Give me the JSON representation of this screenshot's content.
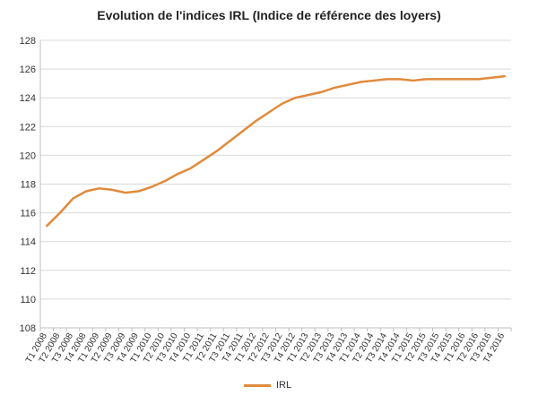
{
  "chart_data": {
    "type": "line",
    "title": "Evolution de l'indices IRL (Indice de référence des loyers)",
    "xlabel": "",
    "ylabel": "",
    "ylim": [
      108,
      128
    ],
    "yticks": [
      108,
      110,
      112,
      114,
      116,
      118,
      120,
      122,
      124,
      126,
      128
    ],
    "grid": true,
    "legend_position": "bottom",
    "categories": [
      "T1 2008",
      "T2 2008",
      "T3 2008",
      "T4 2008",
      "T1 2009",
      "T2 2009",
      "T3 2009",
      "T4 2009",
      "T1 2010",
      "T2 2010",
      "T3 2010",
      "T4 2010",
      "T1 2011",
      "T2 2011",
      "T3 2011",
      "T4 2011",
      "T1 2012",
      "T2 2012",
      "T3 2012",
      "T4 2012",
      "T1 2013",
      "T2 2013",
      "T3 2013",
      "T4 2013",
      "T1 2014",
      "T2 2014",
      "T3 2014",
      "T4 2014",
      "T1 2015",
      "T2 2015",
      "T3 2015",
      "T4 2015",
      "T1 2016",
      "T2 2016",
      "T3 2016",
      "T4 2016"
    ],
    "series": [
      {
        "name": "IRL",
        "color": "#E08A3C",
        "values": [
          115.1,
          116.0,
          117.0,
          117.5,
          117.7,
          117.6,
          117.4,
          117.5,
          117.8,
          118.2,
          118.7,
          119.1,
          119.7,
          120.3,
          121.0,
          121.7,
          122.4,
          123.0,
          123.6,
          124.0,
          124.2,
          124.4,
          124.7,
          124.9,
          125.1,
          125.2,
          125.3,
          125.3,
          125.2,
          125.3,
          125.3,
          125.3,
          125.3,
          125.3,
          125.4,
          125.5
        ]
      }
    ]
  }
}
